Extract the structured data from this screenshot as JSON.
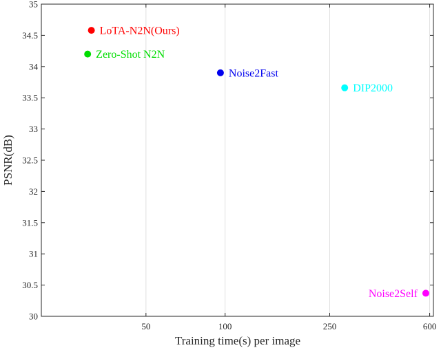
{
  "chart_data": {
    "type": "scatter",
    "xscale": "log",
    "xlabel": "Training time(s) per image",
    "ylabel": "PSNR(dB)",
    "xlim": [
      20,
      620
    ],
    "ylim": [
      30,
      35
    ],
    "xticks": [
      50,
      100,
      250,
      600
    ],
    "yticks": [
      30,
      30.5,
      31,
      31.5,
      32,
      32.5,
      33,
      33.5,
      34,
      34.5,
      35
    ],
    "grid": true,
    "points": [
      {
        "label": "LoTA-N2N(Ours)",
        "x": 31,
        "y": 34.58,
        "color": "#ff0000",
        "label_side": "right"
      },
      {
        "label": "Zero-Shot N2N",
        "x": 30,
        "y": 34.2,
        "color": "#00dd00",
        "label_side": "right"
      },
      {
        "label": "Noise2Fast",
        "x": 96,
        "y": 33.9,
        "color": "#0000ee",
        "label_side": "right"
      },
      {
        "label": "DIP2000",
        "x": 285,
        "y": 33.66,
        "color": "#00ffff",
        "label_side": "right"
      },
      {
        "label": "Noise2Self",
        "x": 580,
        "y": 30.37,
        "color": "#ff00ff",
        "label_side": "left"
      }
    ]
  }
}
